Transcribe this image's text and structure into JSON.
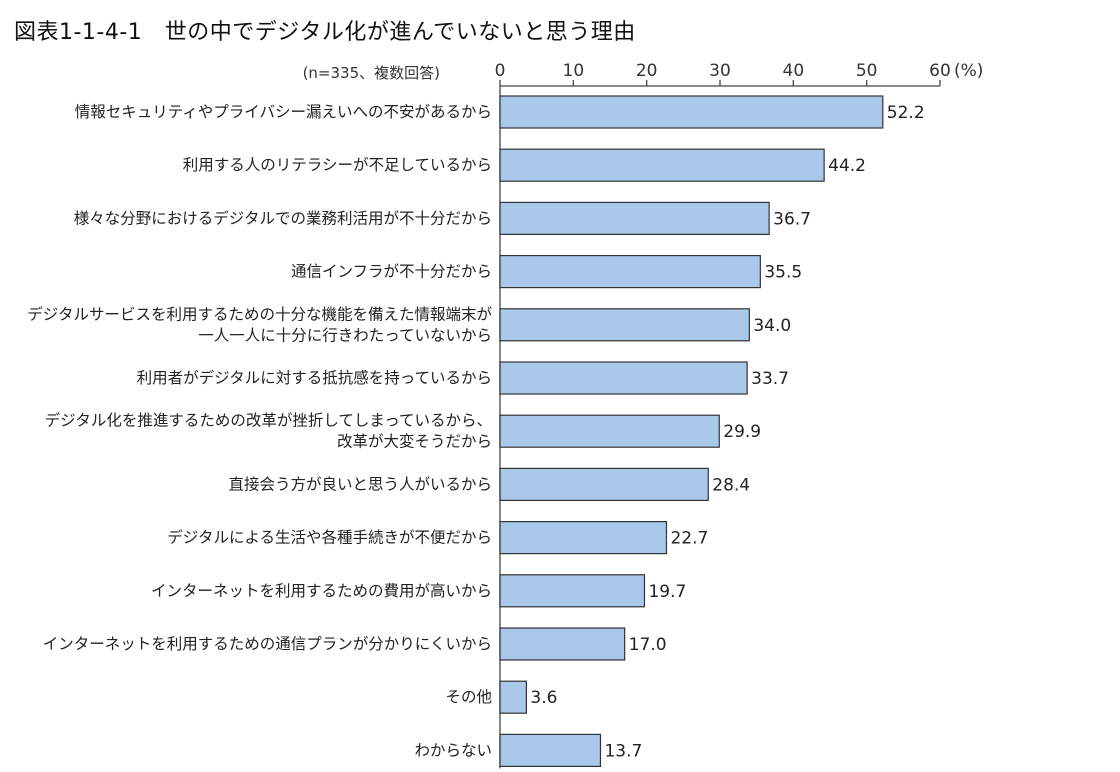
{
  "header": {
    "title": "図表1-1-4-1　世の中でデジタル化が進んでいないと思う理由"
  },
  "chart_data": {
    "type": "bar",
    "orientation": "horizontal",
    "title": "図表1-1-4-1　世の中でデジタル化が進んでいないと思う理由",
    "note": "(n=335、複数回答)",
    "xlim": [
      0,
      60
    ],
    "xticks": [
      0,
      10,
      20,
      30,
      40,
      50,
      60
    ],
    "unit": "(%)",
    "grid": false,
    "bar_color": "#a9c8ea",
    "categories": [
      [
        "情報セキュリティやプライバシー漏えいへの不安があるから"
      ],
      [
        "利用する人のリテラシーが不足しているから"
      ],
      [
        "様々な分野におけるデジタルでの業務利活用が不十分だから"
      ],
      [
        "通信インフラが不十分だから"
      ],
      [
        "デジタルサービスを利用するための十分な機能を備えた情報端末が",
        "一人一人に十分に行きわたっていないから"
      ],
      [
        "利用者がデジタルに対する抵抗感を持っているから"
      ],
      [
        "デジタル化を推進するための改革が挫折してしまっているから、",
        "改革が大変そうだから"
      ],
      [
        "直接会う方が良いと思う人がいるから"
      ],
      [
        "デジタルによる生活や各種手続きが不便だから"
      ],
      [
        "インターネットを利用するための費用が高いから"
      ],
      [
        "インターネットを利用するための通信プランが分かりにくいから"
      ],
      [
        "その他"
      ],
      [
        "わからない"
      ]
    ],
    "values": [
      52.2,
      44.2,
      36.7,
      35.5,
      34.0,
      33.7,
      29.9,
      28.4,
      22.7,
      19.7,
      17.0,
      3.6,
      13.7
    ],
    "value_labels": [
      "52.2",
      "44.2",
      "36.7",
      "35.5",
      "34.0",
      "33.7",
      "29.9",
      "28.4",
      "22.7",
      "19.7",
      "17.0",
      "3.6",
      "13.7"
    ]
  }
}
